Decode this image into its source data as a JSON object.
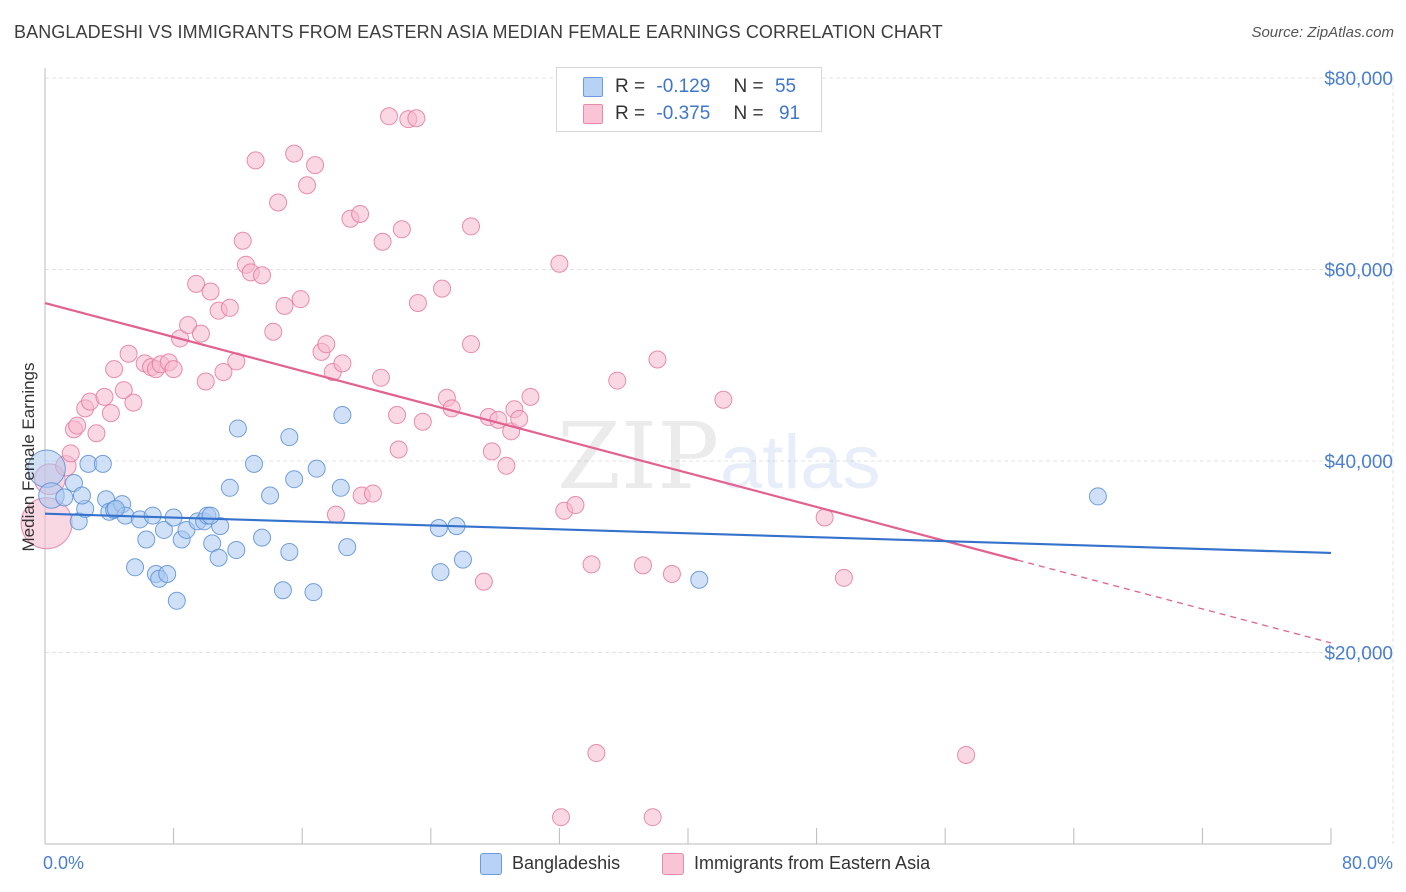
{
  "title": "BANGLADESHI VS IMMIGRANTS FROM EASTERN ASIA MEDIAN FEMALE EARNINGS CORRELATION CHART",
  "source": "Source: ZipAtlas.com",
  "watermark": {
    "zip": "ZIP",
    "atlas": "atlas"
  },
  "legend": {
    "rows": [
      {
        "r_label": "R =",
        "r_value": "-0.129",
        "n_label": "N =",
        "n_value": "55"
      },
      {
        "r_label": "R =",
        "r_value": "-0.375",
        "n_label": "N =",
        "n_value": "91"
      }
    ]
  },
  "bottom_legend": [
    "Bangladeshis",
    "Immigrants from Eastern Asia"
  ],
  "colors": {
    "blue_fill": "#a9c8f0",
    "blue_stroke": "#5b8fd6",
    "blue_line": "#3572cc",
    "pink_fill": "#f5b8cc",
    "pink_stroke": "#e57a9e",
    "pink_line": "#e2618f",
    "grid": "#e3e3e3",
    "label": "#4a7fd0"
  },
  "chart_data": {
    "type": "scatter",
    "title": "BANGLADESHI VS IMMIGRANTS FROM EASTERN ASIA MEDIAN FEMALE EARNINGS CORRELATION CHART",
    "xlabel": "",
    "ylabel": "Median Female Earnings",
    "xlim": [
      0,
      80
    ],
    "ylim": [
      0,
      80000
    ],
    "x_tick_labels": [
      "0.0%",
      "80.0%"
    ],
    "y_ticks": [
      20000,
      40000,
      60000,
      80000
    ],
    "y_tick_labels": [
      "$20,000",
      "$40,000",
      "$60,000",
      "$80,000"
    ],
    "grid": true,
    "legend_position": "top-center",
    "series": [
      {
        "name": "Bangladeshis",
        "r": -0.129,
        "n": 55,
        "trend": {
          "x": [
            0,
            80
          ],
          "y": [
            34500,
            30400
          ],
          "solid_until": 80
        },
        "points": [
          [
            0.1,
            39200,
            2.2
          ],
          [
            0.4,
            36400,
            1.5
          ],
          [
            1.2,
            36200,
            1
          ],
          [
            1.8,
            37700,
            1
          ],
          [
            2.1,
            33700,
            1
          ],
          [
            2.5,
            35000,
            1
          ],
          [
            2.7,
            39700,
            1
          ],
          [
            3.6,
            39700,
            1
          ],
          [
            3.8,
            36000,
            1
          ],
          [
            4.0,
            34700,
            1
          ],
          [
            4.3,
            34900,
            1
          ],
          [
            4.8,
            35500,
            1
          ],
          [
            5.0,
            34300,
            1
          ],
          [
            5.6,
            28900,
            1
          ],
          [
            5.9,
            33900,
            1
          ],
          [
            6.3,
            31800,
            1
          ],
          [
            6.7,
            34300,
            1
          ],
          [
            6.9,
            28200,
            1
          ],
          [
            7.1,
            27700,
            1
          ],
          [
            7.6,
            28200,
            1
          ],
          [
            7.4,
            32800,
            1
          ],
          [
            8.0,
            34100,
            1
          ],
          [
            8.2,
            25400,
            1
          ],
          [
            8.5,
            31800,
            1
          ],
          [
            8.8,
            32800,
            1
          ],
          [
            9.5,
            33700,
            1
          ],
          [
            9.9,
            33700,
            1
          ],
          [
            10.1,
            34300,
            1
          ],
          [
            10.4,
            31400,
            1
          ],
          [
            10.8,
            29900,
            1
          ],
          [
            10.9,
            33200,
            1
          ],
          [
            11.5,
            37200,
            1
          ],
          [
            11.9,
            30700,
            1
          ],
          [
            12.0,
            43400,
            1
          ],
          [
            13.0,
            39700,
            1
          ],
          [
            13.5,
            32000,
            1
          ],
          [
            14.0,
            36400,
            1
          ],
          [
            14.8,
            26500,
            1
          ],
          [
            15.2,
            42500,
            1
          ],
          [
            15.2,
            30500,
            1
          ],
          [
            15.5,
            38100,
            1
          ],
          [
            16.7,
            26300,
            1
          ],
          [
            16.9,
            39200,
            1
          ],
          [
            18.4,
            37200,
            1
          ],
          [
            18.5,
            44800,
            1
          ],
          [
            18.8,
            31000,
            1
          ],
          [
            24.5,
            33000,
            1
          ],
          [
            24.6,
            28400,
            1
          ],
          [
            25.6,
            33200,
            1
          ],
          [
            26.0,
            29700,
            1
          ],
          [
            40.7,
            27600,
            1
          ],
          [
            65.5,
            36300,
            1
          ],
          [
            10.3,
            34300,
            1
          ],
          [
            2.3,
            36400,
            1
          ],
          [
            4.4,
            35000,
            1
          ]
        ]
      },
      {
        "name": "Immigrants from Eastern Asia",
        "r": -0.375,
        "n": 91,
        "trend": {
          "x": [
            0,
            80
          ],
          "y": [
            56500,
            21000
          ],
          "solid_until": 60.5
        },
        "points": [
          [
            0.1,
            33500,
            3
          ],
          [
            0.3,
            38100,
            1.8
          ],
          [
            1.3,
            39500,
            1.2
          ],
          [
            1.6,
            40800,
            1
          ],
          [
            1.8,
            43300,
            1
          ],
          [
            2.0,
            43700,
            1
          ],
          [
            2.5,
            45500,
            1
          ],
          [
            2.8,
            46200,
            1
          ],
          [
            3.2,
            42900,
            1
          ],
          [
            3.7,
            46700,
            1
          ],
          [
            4.1,
            45000,
            1
          ],
          [
            4.3,
            49600,
            1
          ],
          [
            4.9,
            47400,
            1
          ],
          [
            5.2,
            51200,
            1
          ],
          [
            5.5,
            46100,
            1
          ],
          [
            6.2,
            50200,
            1
          ],
          [
            6.6,
            49800,
            1
          ],
          [
            6.9,
            49600,
            1
          ],
          [
            7.2,
            50100,
            1
          ],
          [
            7.7,
            50300,
            1
          ],
          [
            8.0,
            49600,
            1
          ],
          [
            8.4,
            52800,
            1
          ],
          [
            8.9,
            54200,
            1
          ],
          [
            9.4,
            58500,
            1
          ],
          [
            9.7,
            53300,
            1
          ],
          [
            10.0,
            48300,
            1
          ],
          [
            10.3,
            57700,
            1
          ],
          [
            10.8,
            55700,
            1
          ],
          [
            11.1,
            49300,
            1
          ],
          [
            11.5,
            56000,
            1
          ],
          [
            11.9,
            50400,
            1
          ],
          [
            12.3,
            63000,
            1
          ],
          [
            12.5,
            60500,
            1
          ],
          [
            12.8,
            59700,
            1
          ],
          [
            13.1,
            71400,
            1
          ],
          [
            13.5,
            59400,
            1
          ],
          [
            14.2,
            53500,
            1
          ],
          [
            14.5,
            67000,
            1
          ],
          [
            14.9,
            56200,
            1
          ],
          [
            15.5,
            72100,
            1
          ],
          [
            15.9,
            56900,
            1
          ],
          [
            16.3,
            68800,
            1
          ],
          [
            16.8,
            70900,
            1
          ],
          [
            17.2,
            51400,
            1
          ],
          [
            17.5,
            52200,
            1
          ],
          [
            17.9,
            49300,
            1
          ],
          [
            18.1,
            34400,
            1
          ],
          [
            18.5,
            50200,
            1
          ],
          [
            19.0,
            65300,
            1
          ],
          [
            19.6,
            65800,
            1
          ],
          [
            19.7,
            36400,
            1
          ],
          [
            20.4,
            36600,
            1
          ],
          [
            20.9,
            48700,
            1
          ],
          [
            21.0,
            62900,
            1
          ],
          [
            21.4,
            76000,
            1
          ],
          [
            21.9,
            44800,
            1
          ],
          [
            22.0,
            41200,
            1
          ],
          [
            22.2,
            64200,
            1
          ],
          [
            22.6,
            75700,
            1
          ],
          [
            23.1,
            75800,
            1
          ],
          [
            23.2,
            56500,
            1
          ],
          [
            23.5,
            44100,
            1
          ],
          [
            24.7,
            58000,
            1
          ],
          [
            25.0,
            46600,
            1
          ],
          [
            25.3,
            45500,
            1
          ],
          [
            26.5,
            52200,
            1
          ],
          [
            26.5,
            64500,
            1
          ],
          [
            27.3,
            27400,
            1
          ],
          [
            27.6,
            44600,
            1
          ],
          [
            27.8,
            41000,
            1
          ],
          [
            28.2,
            44300,
            1
          ],
          [
            28.7,
            39500,
            1
          ],
          [
            29.0,
            43100,
            1
          ],
          [
            29.2,
            45400,
            1
          ],
          [
            29.5,
            44400,
            1
          ],
          [
            30.2,
            46700,
            1
          ],
          [
            32.0,
            60600,
            1
          ],
          [
            32.3,
            34800,
            1
          ],
          [
            33.0,
            35400,
            1
          ],
          [
            34.0,
            29200,
            1
          ],
          [
            35.6,
            48400,
            1
          ],
          [
            37.2,
            29100,
            1
          ],
          [
            38.1,
            50600,
            1
          ],
          [
            39.0,
            28200,
            1
          ],
          [
            42.2,
            46400,
            1
          ],
          [
            48.5,
            34100,
            1
          ],
          [
            49.7,
            27800,
            1
          ],
          [
            57.3,
            9300,
            1
          ],
          [
            34.3,
            9500,
            1
          ],
          [
            32.1,
            2800,
            1
          ],
          [
            37.8,
            2800,
            1
          ]
        ]
      }
    ]
  }
}
